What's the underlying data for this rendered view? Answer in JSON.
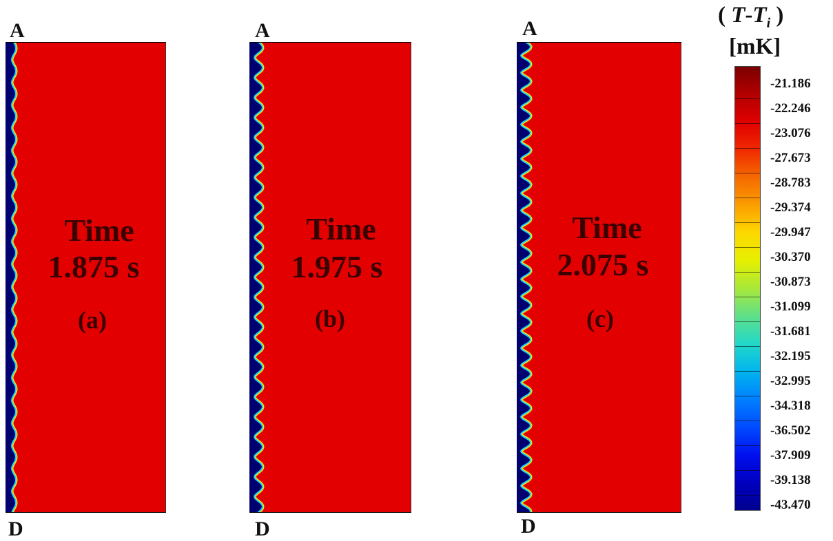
{
  "panels": [
    {
      "top_label": "A",
      "bottom_label": "D",
      "time_word": "Time",
      "time_value": "1.875 s",
      "panel_letter": "(a)"
    },
    {
      "top_label": "A",
      "bottom_label": "D",
      "time_word": "Time",
      "time_value": "1.975 s",
      "panel_letter": "(b)"
    },
    {
      "top_label": "A",
      "bottom_label": "D",
      "time_word": "Time",
      "time_value": "2.075 s",
      "panel_letter": "(c)"
    }
  ],
  "legend": {
    "title_open": "(",
    "title_T": "T",
    "title_dash": "-",
    "title_Ti": "T",
    "title_sub": "i",
    "title_close": ")",
    "unit": "[mK]",
    "values": [
      "-21.186",
      "-22.246",
      "-23.076",
      "-27.673",
      "-28.783",
      "-29.374",
      "-29.947",
      "-30.370",
      "-30.873",
      "-31.099",
      "-31.681",
      "-32.195",
      "-32.995",
      "-34.318",
      "-36.502",
      "-37.909",
      "-39.138",
      "-43.470"
    ],
    "colors": [
      "#7a0000",
      "#b30000",
      "#e00000",
      "#f02a00",
      "#f56a00",
      "#fb9e00",
      "#fdd800",
      "#e6f000",
      "#a8e83a",
      "#5fe08a",
      "#22d8c8",
      "#00b4ee",
      "#0080ff",
      "#004cff",
      "#0010f0",
      "#0000c0",
      "#00008f"
    ]
  },
  "colors": {
    "panel_fill": "#e30000",
    "interface_dark": "#00006e",
    "interface_edge": "#1ad0ff",
    "interface_glow": "#f2e800",
    "panel_text": "#3a0000"
  }
}
